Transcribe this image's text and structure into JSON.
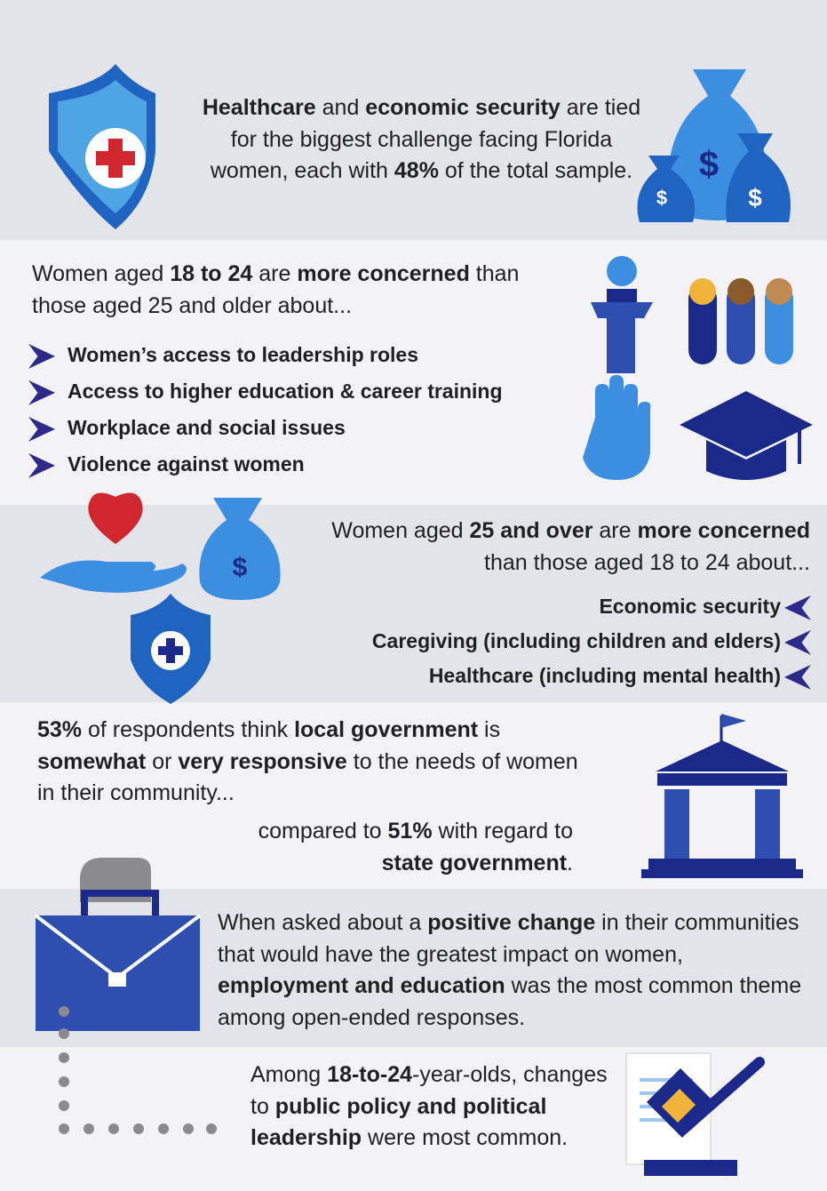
{
  "sections": [
    {
      "text": [
        {
          "text": "Healthcare",
          "bold": true
        },
        {
          "text": " and "
        },
        {
          "text": "economic security",
          "bold": true
        },
        {
          "text": " are tied for the biggest challenge facing Florida women, each with "
        },
        {
          "text": "48%",
          "bold": true
        },
        {
          "text": " of the total sample."
        }
      ]
    },
    {
      "intro": [
        {
          "text": "Women aged "
        },
        {
          "text": "18 to 24",
          "bold": true
        },
        {
          "text": " are "
        },
        {
          "text": "more concerned",
          "bold": true
        },
        {
          "text": " than those aged 25 and older about..."
        }
      ],
      "items": [
        "Women’s access to leadership roles",
        "Access to higher education & career training",
        "Workplace and social issues",
        "Violence against women"
      ]
    },
    {
      "intro": [
        {
          "text": "Women aged "
        },
        {
          "text": "25 and over",
          "bold": true
        },
        {
          "text": " are "
        },
        {
          "text": "more concerned",
          "bold": true
        },
        {
          "text": " than those aged 18 to 24 about..."
        }
      ],
      "items": [
        "Economic security",
        "Caregiving (including children and elders)",
        "Healthcare (including mental health)"
      ]
    },
    {
      "text": [
        {
          "text": "53%",
          "bold": true
        },
        {
          "text": " of respondents think "
        },
        {
          "text": "local government",
          "bold": true
        },
        {
          "text": " is "
        },
        {
          "text": "somewhat",
          "bold": true
        },
        {
          "text": " or "
        },
        {
          "text": "very responsive",
          "bold": true
        },
        {
          "text": " to the needs of women in their community..."
        }
      ],
      "comparison": [
        {
          "text": "compared to "
        },
        {
          "text": "51%",
          "bold": true
        },
        {
          "text": " with regard to "
        },
        {
          "text": "state government",
          "bold": true
        },
        {
          "text": "."
        }
      ]
    },
    {
      "text": [
        {
          "text": "When asked about a "
        },
        {
          "text": "positive change",
          "bold": true
        },
        {
          "text": " in their communities that would have the greatest impact on women, "
        },
        {
          "text": "employment and education",
          "bold": true
        },
        {
          "text": " was the most common theme among open-ended responses."
        }
      ]
    },
    {
      "text": [
        {
          "text": "Among "
        },
        {
          "text": "18-to-24",
          "bold": true
        },
        {
          "text": "-year-olds, changes to "
        },
        {
          "text": "public policy and political leadership",
          "bold": true
        },
        {
          "text": " were most common."
        }
      ]
    }
  ]
}
